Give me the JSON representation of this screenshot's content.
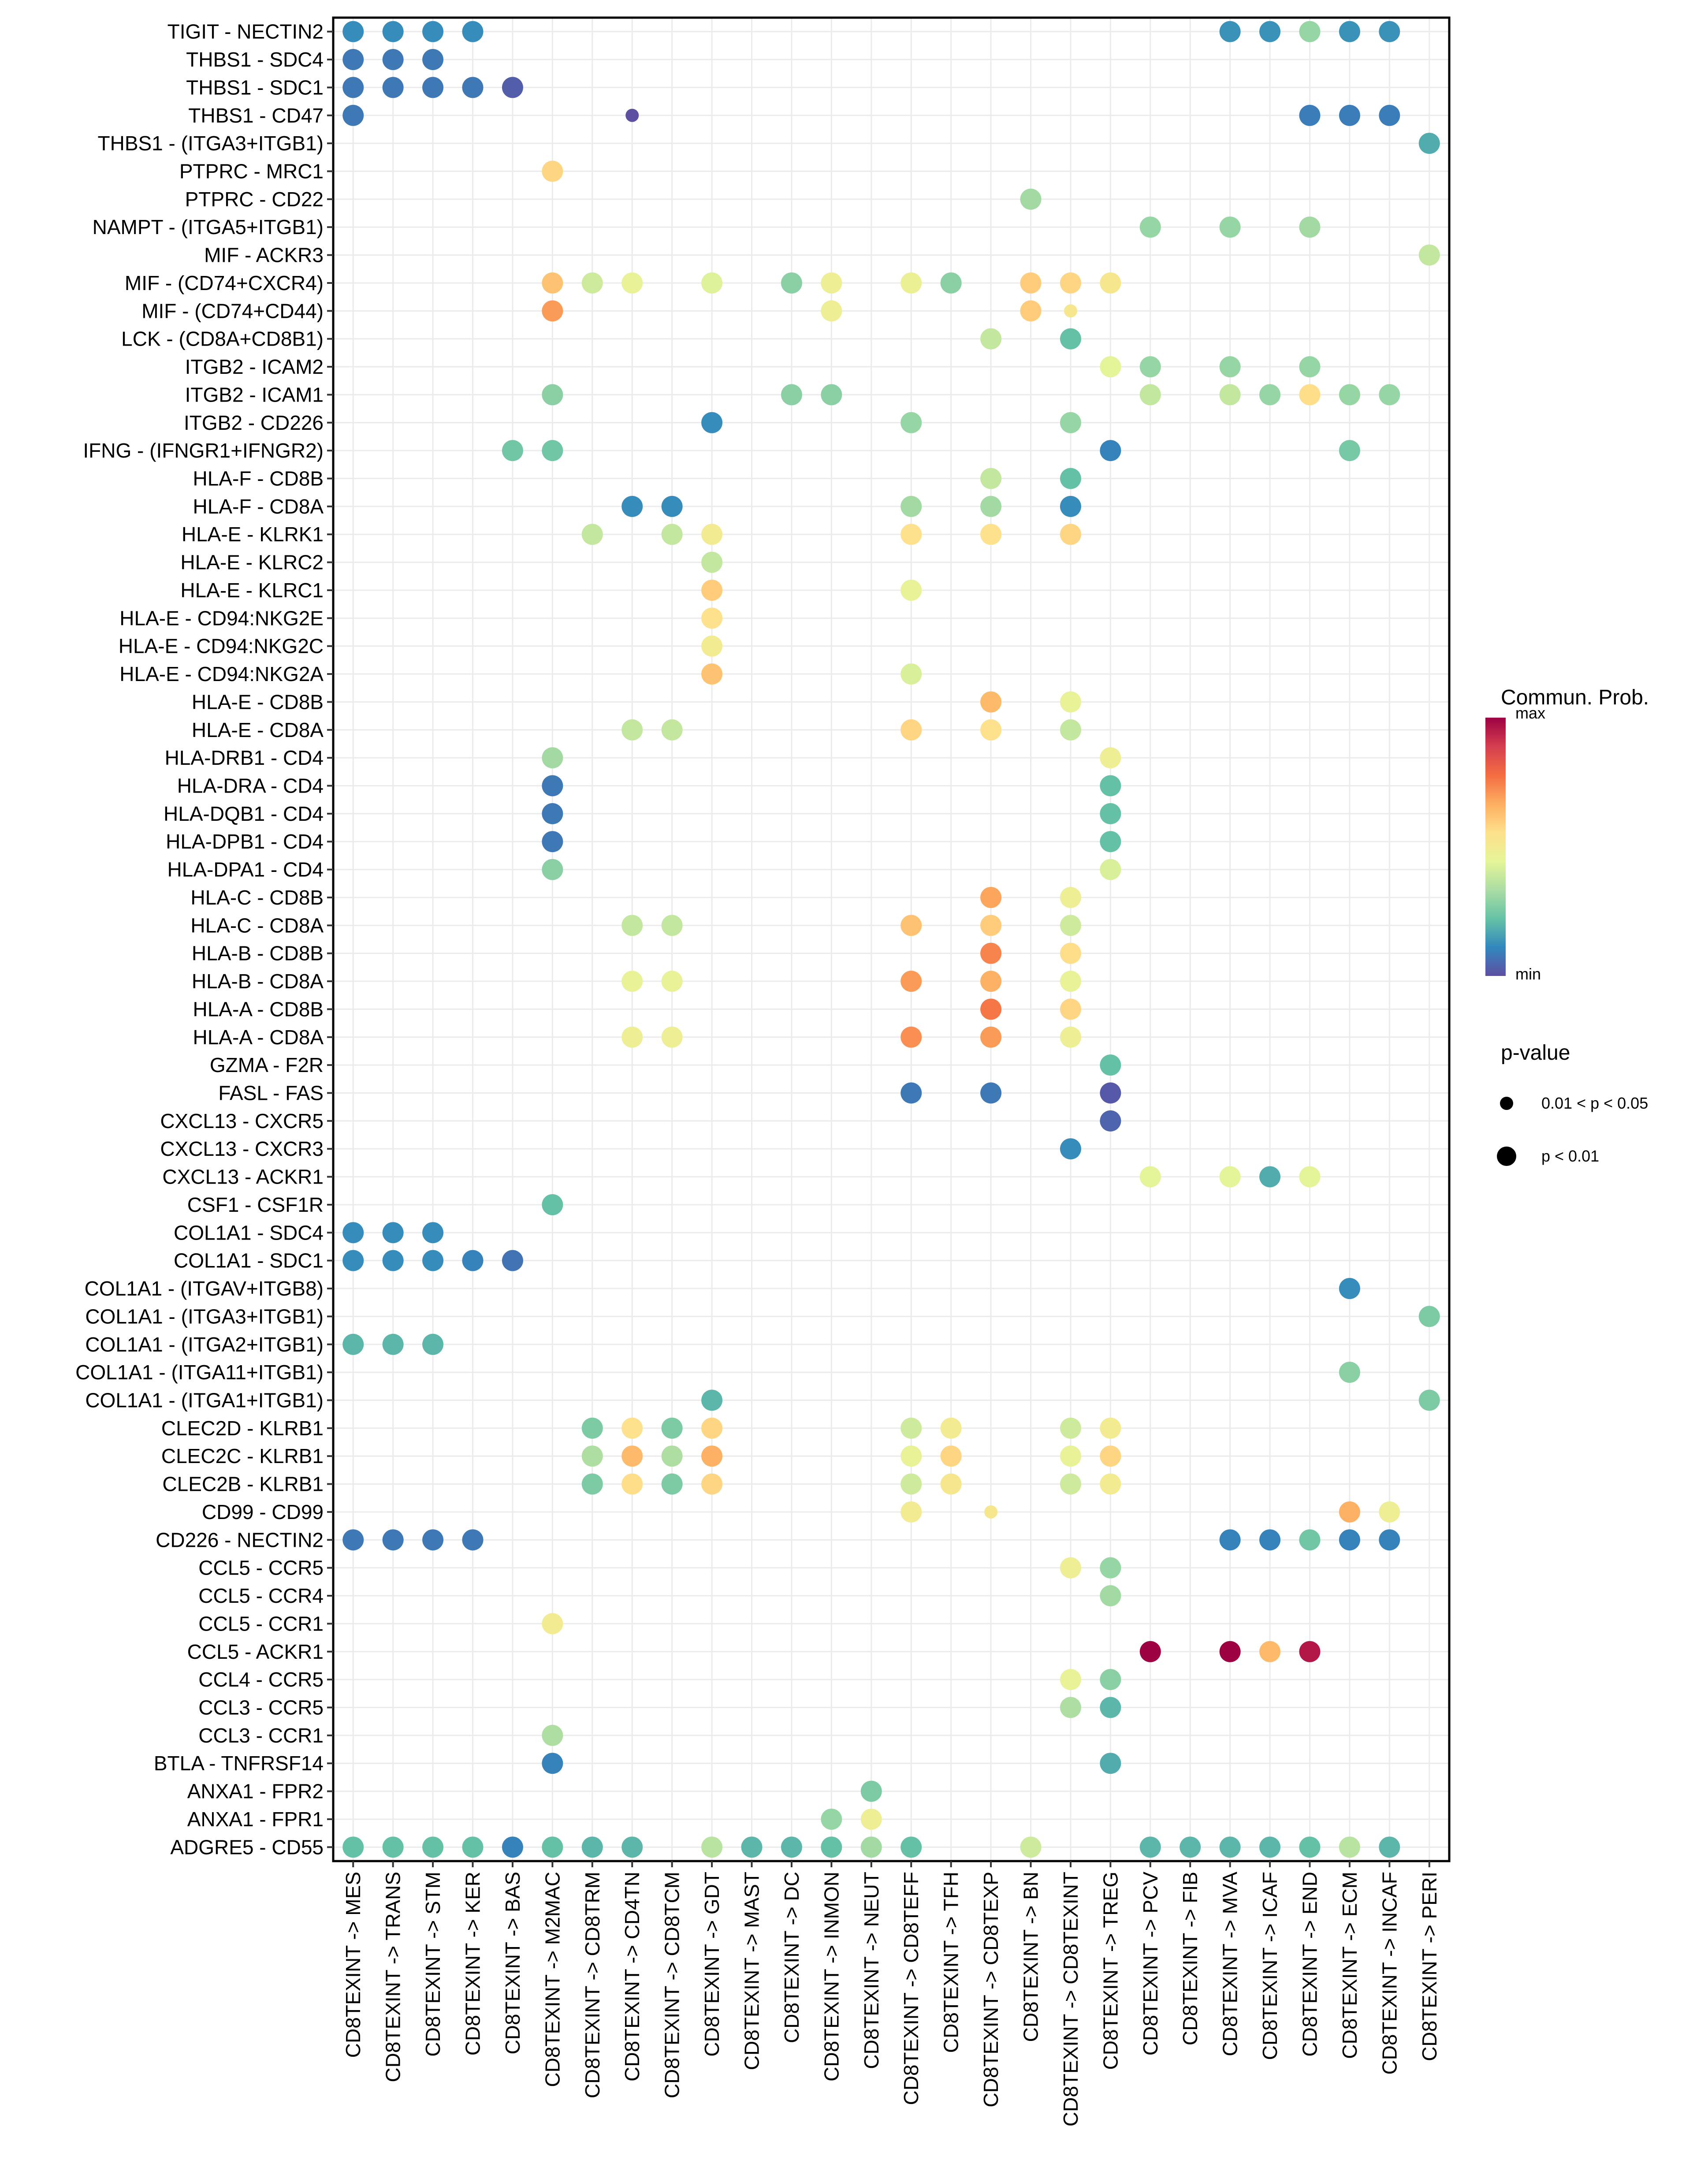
{
  "chart_data": {
    "type": "bubble-heatmap",
    "title": "",
    "xlabel": "",
    "ylabel": "",
    "grid": true,
    "legend_position": "right",
    "x": [
      "CD8TEXINT -> MES",
      "CD8TEXINT -> TRANS",
      "CD8TEXINT -> STM",
      "CD8TEXINT -> KER",
      "CD8TEXINT -> BAS",
      "CD8TEXINT -> M2MAC",
      "CD8TEXINT -> CD8TRM",
      "CD8TEXINT -> CD4TN",
      "CD8TEXINT -> CD8TCM",
      "CD8TEXINT -> GDT",
      "CD8TEXINT -> MAST",
      "CD8TEXINT -> DC",
      "CD8TEXINT -> INMON",
      "CD8TEXINT -> NEUT",
      "CD8TEXINT -> CD8TEFF",
      "CD8TEXINT -> TFH",
      "CD8TEXINT -> CD8TEXP",
      "CD8TEXINT -> BN",
      "CD8TEXINT -> CD8TEXINT",
      "CD8TEXINT -> TREG",
      "CD8TEXINT -> PCV",
      "CD8TEXINT -> FIB",
      "CD8TEXINT -> MVA",
      "CD8TEXINT -> ICAF",
      "CD8TEXINT -> END",
      "CD8TEXINT -> ECM",
      "CD8TEXINT -> INCAF",
      "CD8TEXINT -> PERI"
    ],
    "y": [
      "TIGIT - NECTIN2",
      "THBS1 - SDC4",
      "THBS1 - SDC1",
      "THBS1 - CD47",
      "THBS1 - (ITGA3+ITGB1)",
      "PTPRC - MRC1",
      "PTPRC - CD22",
      "NAMPT - (ITGA5+ITGB1)",
      "MIF - ACKR3",
      "MIF - (CD74+CXCR4)",
      "MIF - (CD74+CD44)",
      "LCK - (CD8A+CD8B1)",
      "ITGB2 - ICAM2",
      "ITGB2 - ICAM1",
      "ITGB2 - CD226",
      "IFNG - (IFNGR1+IFNGR2)",
      "HLA-F - CD8B",
      "HLA-F - CD8A",
      "HLA-E - KLRK1",
      "HLA-E - KLRC2",
      "HLA-E - KLRC1",
      "HLA-E - CD94:NKG2E",
      "HLA-E - CD94:NKG2C",
      "HLA-E - CD94:NKG2A",
      "HLA-E - CD8B",
      "HLA-E - CD8A",
      "HLA-DRB1 - CD4",
      "HLA-DRA - CD4",
      "HLA-DQB1 - CD4",
      "HLA-DPB1 - CD4",
      "HLA-DPA1 - CD4",
      "HLA-C - CD8B",
      "HLA-C - CD8A",
      "HLA-B - CD8B",
      "HLA-B - CD8A",
      "HLA-A - CD8B",
      "HLA-A - CD8A",
      "GZMA - F2R",
      "FASL - FAS",
      "CXCL13 - CXCR5",
      "CXCL13 - CXCR3",
      "CXCL13 - ACKR1",
      "CSF1 - CSF1R",
      "COL1A1 - SDC4",
      "COL1A1 - SDC1",
      "COL1A1 - (ITGAV+ITGB8)",
      "COL1A1 - (ITGA3+ITGB1)",
      "COL1A1 - (ITGA2+ITGB1)",
      "COL1A1 - (ITGA11+ITGB1)",
      "COL1A1 - (ITGA1+ITGB1)",
      "CLEC2D - KLRB1",
      "CLEC2C - KLRB1",
      "CLEC2B - KLRB1",
      "CD99 - CD99",
      "CD226 - NECTIN2",
      "CCL5 - CCR5",
      "CCL5 - CCR4",
      "CCL5 - CCR1",
      "CCL5 - ACKR1",
      "CCL4 - CCR5",
      "CCL3 - CCR5",
      "CCL3 - CCR1",
      "BTLA - TNFRSF14",
      "ANXA1 - FPR2",
      "ANXA1 - FPR1",
      "ADGRE5 - CD55"
    ],
    "color_legend": {
      "title": "Commun. Prob.",
      "max_label": "max",
      "min_label": "min",
      "palette": [
        "#5E4FA2",
        "#3288BD",
        "#66C2A5",
        "#ABDDA4",
        "#E6F598",
        "#FEE08B",
        "#FDAE61",
        "#F46D43",
        "#D53E4F",
        "#9E0142"
      ]
    },
    "size_legend": {
      "title": "p-value",
      "items": [
        {
          "label": "0.01 < p < 0.05",
          "size": "small"
        },
        {
          "label": "p < 0.01",
          "size": "large"
        }
      ]
    },
    "points_note": "each point: [row_index, col_index, comm_prob_scaled_0_to_1, p_category (1 = p<0.01, 0 = 0.01<p<0.05)]",
    "points": [
      [
        0,
        0,
        0.12,
        1
      ],
      [
        0,
        1,
        0.12,
        1
      ],
      [
        0,
        2,
        0.12,
        1
      ],
      [
        0,
        3,
        0.12,
        1
      ],
      [
        0,
        22,
        0.13,
        1
      ],
      [
        0,
        23,
        0.13,
        1
      ],
      [
        0,
        24,
        0.3,
        1
      ],
      [
        0,
        25,
        0.13,
        1
      ],
      [
        0,
        26,
        0.13,
        1
      ],
      [
        1,
        0,
        0.08,
        1
      ],
      [
        1,
        1,
        0.08,
        1
      ],
      [
        1,
        2,
        0.08,
        1
      ],
      [
        2,
        0,
        0.08,
        1
      ],
      [
        2,
        1,
        0.08,
        1
      ],
      [
        2,
        2,
        0.08,
        1
      ],
      [
        2,
        3,
        0.08,
        1
      ],
      [
        2,
        4,
        0.03,
        1
      ],
      [
        3,
        0,
        0.08,
        1
      ],
      [
        3,
        7,
        0.0,
        0
      ],
      [
        3,
        24,
        0.09,
        1
      ],
      [
        3,
        25,
        0.09,
        1
      ],
      [
        3,
        26,
        0.09,
        1
      ],
      [
        4,
        27,
        0.18,
        1
      ],
      [
        5,
        5,
        0.58,
        1
      ],
      [
        6,
        17,
        0.32,
        1
      ],
      [
        7,
        20,
        0.3,
        1
      ],
      [
        7,
        22,
        0.3,
        1
      ],
      [
        7,
        24,
        0.32,
        1
      ],
      [
        8,
        27,
        0.38,
        1
      ],
      [
        9,
        5,
        0.62,
        1
      ],
      [
        9,
        6,
        0.4,
        1
      ],
      [
        9,
        7,
        0.46,
        1
      ],
      [
        9,
        9,
        0.43,
        1
      ],
      [
        9,
        11,
        0.28,
        1
      ],
      [
        9,
        12,
        0.48,
        1
      ],
      [
        9,
        14,
        0.47,
        1
      ],
      [
        9,
        15,
        0.28,
        1
      ],
      [
        9,
        17,
        0.6,
        1
      ],
      [
        9,
        18,
        0.58,
        1
      ],
      [
        9,
        19,
        0.52,
        1
      ],
      [
        10,
        5,
        0.7,
        1
      ],
      [
        10,
        12,
        0.48,
        1
      ],
      [
        10,
        17,
        0.6,
        1
      ],
      [
        10,
        18,
        0.52,
        0
      ],
      [
        11,
        16,
        0.38,
        1
      ],
      [
        11,
        18,
        0.22,
        1
      ],
      [
        12,
        19,
        0.44,
        1
      ],
      [
        12,
        20,
        0.3,
        1
      ],
      [
        12,
        22,
        0.3,
        1
      ],
      [
        12,
        24,
        0.3,
        1
      ],
      [
        13,
        5,
        0.28,
        1
      ],
      [
        13,
        11,
        0.28,
        1
      ],
      [
        13,
        12,
        0.28,
        1
      ],
      [
        13,
        20,
        0.38,
        1
      ],
      [
        13,
        22,
        0.38,
        1
      ],
      [
        13,
        23,
        0.3,
        1
      ],
      [
        13,
        24,
        0.56,
        1
      ],
      [
        13,
        25,
        0.3,
        1
      ],
      [
        13,
        26,
        0.3,
        1
      ],
      [
        14,
        9,
        0.12,
        1
      ],
      [
        14,
        14,
        0.3,
        1
      ],
      [
        14,
        18,
        0.3,
        1
      ],
      [
        15,
        4,
        0.24,
        1
      ],
      [
        15,
        5,
        0.24,
        1
      ],
      [
        15,
        19,
        0.1,
        1
      ],
      [
        15,
        25,
        0.25,
        1
      ],
      [
        16,
        16,
        0.38,
        1
      ],
      [
        16,
        18,
        0.22,
        1
      ],
      [
        17,
        7,
        0.12,
        1
      ],
      [
        17,
        8,
        0.12,
        1
      ],
      [
        17,
        14,
        0.32,
        1
      ],
      [
        17,
        16,
        0.32,
        1
      ],
      [
        17,
        18,
        0.12,
        1
      ],
      [
        18,
        6,
        0.38,
        1
      ],
      [
        18,
        8,
        0.38,
        1
      ],
      [
        18,
        9,
        0.5,
        1
      ],
      [
        18,
        14,
        0.55,
        1
      ],
      [
        18,
        16,
        0.55,
        1
      ],
      [
        18,
        18,
        0.58,
        1
      ],
      [
        19,
        9,
        0.38,
        1
      ],
      [
        20,
        9,
        0.6,
        1
      ],
      [
        20,
        14,
        0.46,
        1
      ],
      [
        21,
        9,
        0.55,
        1
      ],
      [
        22,
        9,
        0.5,
        1
      ],
      [
        23,
        9,
        0.62,
        1
      ],
      [
        23,
        14,
        0.42,
        1
      ],
      [
        24,
        16,
        0.64,
        1
      ],
      [
        24,
        18,
        0.46,
        1
      ],
      [
        25,
        7,
        0.38,
        1
      ],
      [
        25,
        8,
        0.38,
        1
      ],
      [
        25,
        14,
        0.58,
        1
      ],
      [
        25,
        16,
        0.55,
        1
      ],
      [
        25,
        18,
        0.38,
        1
      ],
      [
        26,
        5,
        0.32,
        1
      ],
      [
        26,
        19,
        0.48,
        1
      ],
      [
        27,
        5,
        0.08,
        1
      ],
      [
        27,
        19,
        0.22,
        1
      ],
      [
        28,
        5,
        0.08,
        1
      ],
      [
        28,
        19,
        0.22,
        1
      ],
      [
        29,
        5,
        0.08,
        1
      ],
      [
        29,
        19,
        0.22,
        1
      ],
      [
        30,
        5,
        0.28,
        1
      ],
      [
        30,
        19,
        0.42,
        1
      ],
      [
        31,
        16,
        0.68,
        1
      ],
      [
        31,
        18,
        0.48,
        1
      ],
      [
        32,
        7,
        0.38,
        1
      ],
      [
        32,
        8,
        0.38,
        1
      ],
      [
        32,
        14,
        0.62,
        1
      ],
      [
        32,
        16,
        0.6,
        1
      ],
      [
        32,
        18,
        0.4,
        1
      ],
      [
        33,
        16,
        0.74,
        1
      ],
      [
        33,
        18,
        0.56,
        1
      ],
      [
        34,
        7,
        0.46,
        1
      ],
      [
        34,
        8,
        0.46,
        1
      ],
      [
        34,
        14,
        0.7,
        1
      ],
      [
        34,
        16,
        0.66,
        1
      ],
      [
        34,
        18,
        0.46,
        1
      ],
      [
        35,
        16,
        0.76,
        1
      ],
      [
        35,
        18,
        0.58,
        1
      ],
      [
        36,
        7,
        0.48,
        1
      ],
      [
        36,
        8,
        0.48,
        1
      ],
      [
        36,
        14,
        0.72,
        1
      ],
      [
        36,
        16,
        0.7,
        1
      ],
      [
        36,
        18,
        0.48,
        1
      ],
      [
        37,
        19,
        0.22,
        1
      ],
      [
        38,
        14,
        0.08,
        1
      ],
      [
        38,
        16,
        0.08,
        1
      ],
      [
        38,
        19,
        0.02,
        1
      ],
      [
        39,
        19,
        0.04,
        1
      ],
      [
        40,
        18,
        0.12,
        1
      ],
      [
        41,
        20,
        0.44,
        1
      ],
      [
        41,
        22,
        0.44,
        1
      ],
      [
        41,
        23,
        0.18,
        1
      ],
      [
        41,
        24,
        0.44,
        1
      ],
      [
        42,
        5,
        0.22,
        1
      ],
      [
        43,
        0,
        0.12,
        1
      ],
      [
        43,
        1,
        0.12,
        1
      ],
      [
        43,
        2,
        0.12,
        1
      ],
      [
        44,
        0,
        0.12,
        1
      ],
      [
        44,
        1,
        0.12,
        1
      ],
      [
        44,
        2,
        0.12,
        1
      ],
      [
        44,
        3,
        0.1,
        1
      ],
      [
        44,
        4,
        0.07,
        1
      ],
      [
        45,
        25,
        0.12,
        1
      ],
      [
        46,
        27,
        0.26,
        1
      ],
      [
        47,
        0,
        0.2,
        1
      ],
      [
        47,
        1,
        0.2,
        1
      ],
      [
        47,
        2,
        0.2,
        1
      ],
      [
        48,
        25,
        0.28,
        1
      ],
      [
        49,
        9,
        0.2,
        1
      ],
      [
        49,
        27,
        0.26,
        1
      ],
      [
        50,
        6,
        0.26,
        1
      ],
      [
        50,
        7,
        0.55,
        1
      ],
      [
        50,
        8,
        0.26,
        1
      ],
      [
        50,
        9,
        0.58,
        1
      ],
      [
        50,
        14,
        0.4,
        1
      ],
      [
        50,
        15,
        0.5,
        1
      ],
      [
        50,
        18,
        0.4,
        1
      ],
      [
        50,
        19,
        0.5,
        1
      ],
      [
        51,
        6,
        0.34,
        1
      ],
      [
        51,
        7,
        0.64,
        1
      ],
      [
        51,
        8,
        0.34,
        1
      ],
      [
        51,
        9,
        0.66,
        1
      ],
      [
        51,
        14,
        0.46,
        1
      ],
      [
        51,
        15,
        0.58,
        1
      ],
      [
        51,
        18,
        0.46,
        1
      ],
      [
        51,
        19,
        0.58,
        1
      ],
      [
        52,
        6,
        0.26,
        1
      ],
      [
        52,
        7,
        0.56,
        1
      ],
      [
        52,
        8,
        0.26,
        1
      ],
      [
        52,
        9,
        0.58,
        1
      ],
      [
        52,
        14,
        0.4,
        1
      ],
      [
        52,
        15,
        0.52,
        1
      ],
      [
        52,
        18,
        0.4,
        1
      ],
      [
        52,
        19,
        0.5,
        1
      ],
      [
        53,
        14,
        0.5,
        1
      ],
      [
        53,
        16,
        0.52,
        0
      ],
      [
        53,
        25,
        0.66,
        1
      ],
      [
        53,
        26,
        0.48,
        1
      ],
      [
        54,
        0,
        0.08,
        1
      ],
      [
        54,
        1,
        0.08,
        1
      ],
      [
        54,
        2,
        0.08,
        1
      ],
      [
        54,
        3,
        0.08,
        1
      ],
      [
        54,
        22,
        0.1,
        1
      ],
      [
        54,
        23,
        0.1,
        1
      ],
      [
        54,
        24,
        0.24,
        1
      ],
      [
        54,
        25,
        0.1,
        1
      ],
      [
        54,
        26,
        0.1,
        1
      ],
      [
        55,
        18,
        0.48,
        1
      ],
      [
        55,
        19,
        0.3,
        1
      ],
      [
        56,
        19,
        0.32,
        1
      ],
      [
        57,
        5,
        0.5,
        1
      ],
      [
        58,
        20,
        1.0,
        1
      ],
      [
        58,
        22,
        1.0,
        1
      ],
      [
        58,
        23,
        0.64,
        1
      ],
      [
        58,
        24,
        0.96,
        1
      ],
      [
        59,
        18,
        0.46,
        1
      ],
      [
        59,
        19,
        0.28,
        1
      ],
      [
        60,
        18,
        0.34,
        1
      ],
      [
        60,
        19,
        0.2,
        1
      ],
      [
        61,
        5,
        0.34,
        1
      ],
      [
        62,
        5,
        0.1,
        1
      ],
      [
        62,
        19,
        0.18,
        1
      ],
      [
        63,
        13,
        0.26,
        1
      ],
      [
        64,
        12,
        0.3,
        1
      ],
      [
        64,
        13,
        0.48,
        1
      ],
      [
        65,
        0,
        0.22,
        1
      ],
      [
        65,
        1,
        0.22,
        1
      ],
      [
        65,
        2,
        0.22,
        1
      ],
      [
        65,
        3,
        0.22,
        1
      ],
      [
        65,
        4,
        0.1,
        1
      ],
      [
        65,
        5,
        0.22,
        1
      ],
      [
        65,
        6,
        0.2,
        1
      ],
      [
        65,
        7,
        0.2,
        1
      ],
      [
        65,
        9,
        0.36,
        1
      ],
      [
        65,
        10,
        0.2,
        1
      ],
      [
        65,
        11,
        0.2,
        1
      ],
      [
        65,
        12,
        0.22,
        1
      ],
      [
        65,
        13,
        0.32,
        1
      ],
      [
        65,
        14,
        0.22,
        1
      ],
      [
        65,
        17,
        0.4,
        1
      ],
      [
        65,
        20,
        0.2,
        1
      ],
      [
        65,
        21,
        0.2,
        1
      ],
      [
        65,
        22,
        0.2,
        1
      ],
      [
        65,
        23,
        0.2,
        1
      ],
      [
        65,
        24,
        0.22,
        1
      ],
      [
        65,
        25,
        0.36,
        1
      ],
      [
        65,
        26,
        0.2,
        1
      ]
    ]
  }
}
